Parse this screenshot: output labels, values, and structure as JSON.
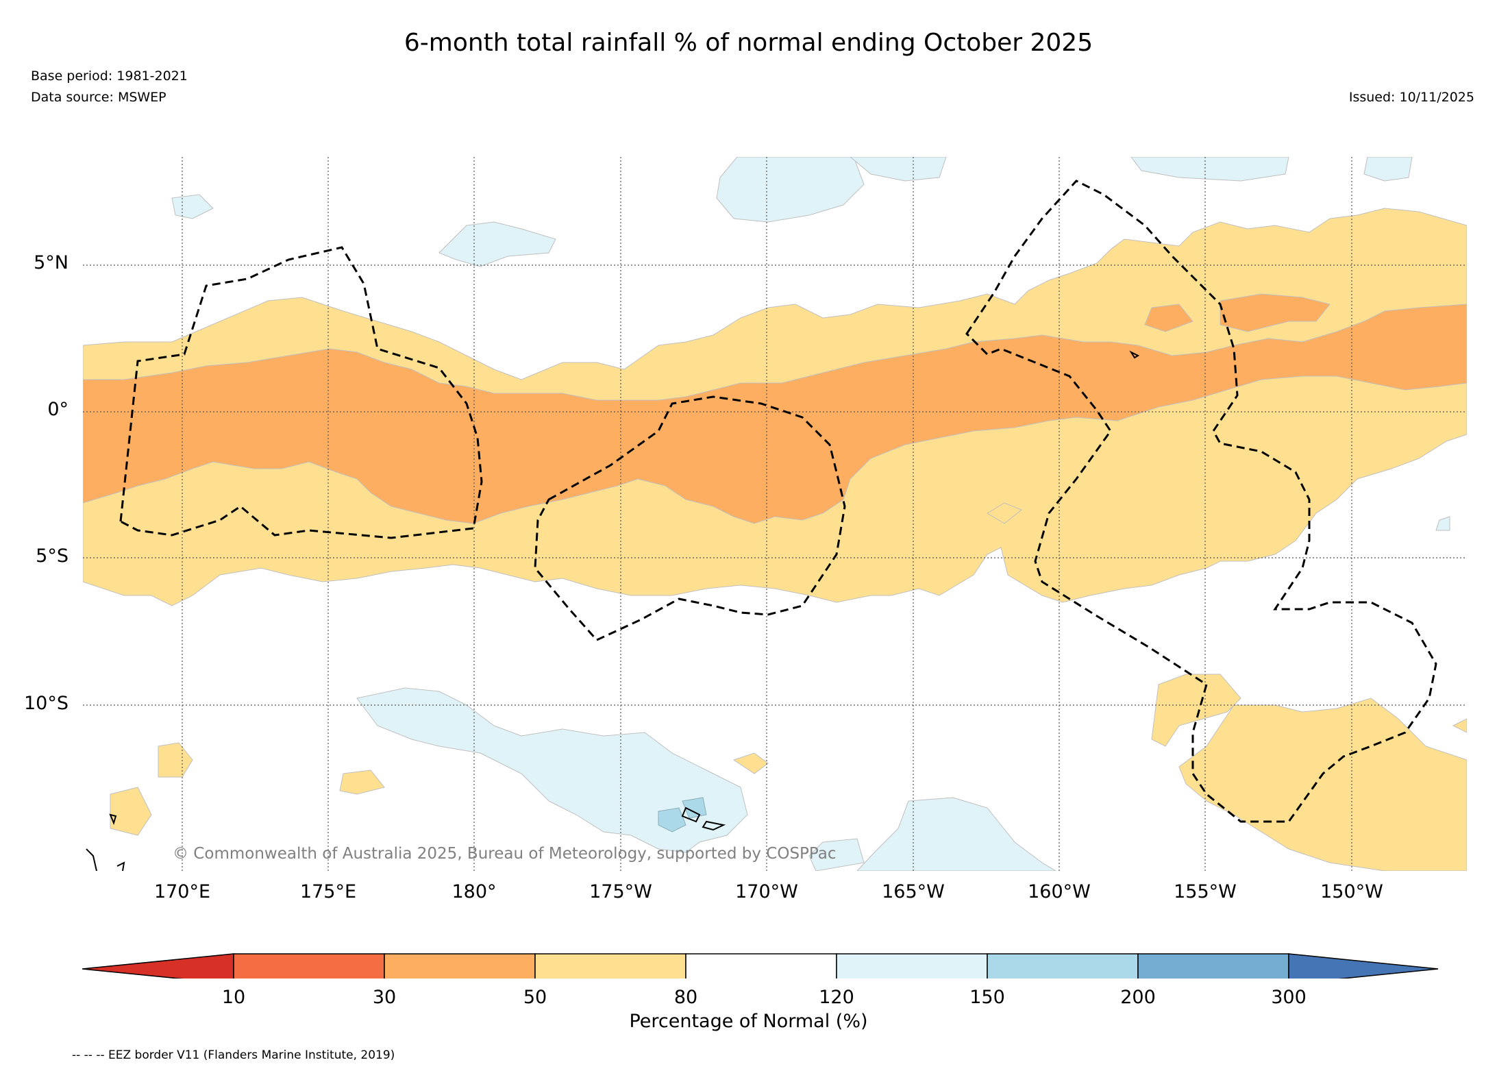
{
  "title": "6-month total rainfall % of normal ending October 2025",
  "base_period": "Base period: 1981-2021",
  "data_source": "Data source: MSWEP",
  "issued": "Issued: 10/11/2025",
  "map": {
    "lat_labels": [
      "5°N",
      "0°",
      "5°S",
      "10°S"
    ],
    "lon_labels": [
      "170°E",
      "175°E",
      "180°",
      "175°W",
      "170°W",
      "165°W",
      "160°W",
      "155°W",
      "150°W"
    ],
    "copyright": "© Commonwealth of Australia 2025, Bureau of Meteorology, supported by COSPPac"
  },
  "colorbar": {
    "ticks": [
      "10",
      "30",
      "50",
      "80",
      "120",
      "150",
      "200",
      "300"
    ],
    "label": "Percentage of Normal (%)",
    "colors": {
      "below_10": "#d73027",
      "10_30": "#f46d43",
      "30_50": "#fdae61",
      "50_80": "#fee090",
      "80_120": "#ffffff",
      "120_150": "#e0f3f8",
      "150_200": "#abd9e9",
      "200_300": "#74add1",
      "above_300": "#4575b4"
    }
  },
  "legend_note": "-- -- -- EEZ border V11 (Flanders Marine Institute, 2019)"
}
